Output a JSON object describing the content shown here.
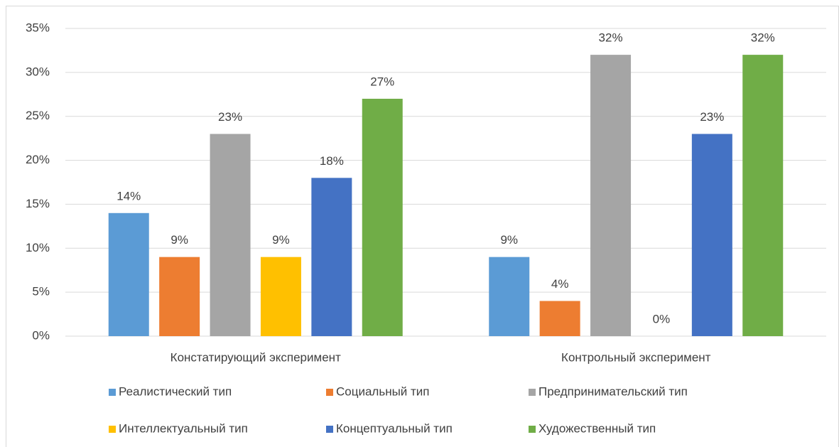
{
  "chart_data": {
    "type": "bar",
    "categories": [
      "Констатирующий эксперимент",
      "Контрольный эксперимент"
    ],
    "series": [
      {
        "name": "Реалистический тип",
        "color": "#5b9bd5",
        "values": [
          14,
          9
        ],
        "value_labels": [
          "14%",
          "9%"
        ]
      },
      {
        "name": "Социальный тип",
        "color": "#ed7d31",
        "values": [
          9,
          4
        ],
        "value_labels": [
          "9%",
          "4%"
        ]
      },
      {
        "name": "Предпринимательский тип",
        "color": "#a5a5a5",
        "values": [
          23,
          32
        ],
        "value_labels": [
          "23%",
          "32%"
        ]
      },
      {
        "name": "Интеллектуальный тип",
        "color": "#ffc000",
        "values": [
          9,
          0
        ],
        "value_labels": [
          "9%",
          "0%"
        ]
      },
      {
        "name": "Концептуальный тип",
        "color": "#4472c4",
        "values": [
          18,
          23
        ],
        "value_labels": [
          "18%",
          "23%"
        ]
      },
      {
        "name": "Художественный тип",
        "color": "#70ad47",
        "values": [
          27,
          32
        ],
        "value_labels": [
          "27%",
          "32%"
        ]
      }
    ],
    "ylim": [
      0,
      35
    ],
    "yticks": [
      {
        "value": 0,
        "label": "0%"
      },
      {
        "value": 5,
        "label": "5%"
      },
      {
        "value": 10,
        "label": "10%"
      },
      {
        "value": 15,
        "label": "15%"
      },
      {
        "value": 20,
        "label": "20%"
      },
      {
        "value": 25,
        "label": "25%"
      },
      {
        "value": 30,
        "label": "30%"
      },
      {
        "value": 35,
        "label": "35%"
      }
    ],
    "grid": true,
    "legend": "bottom"
  }
}
